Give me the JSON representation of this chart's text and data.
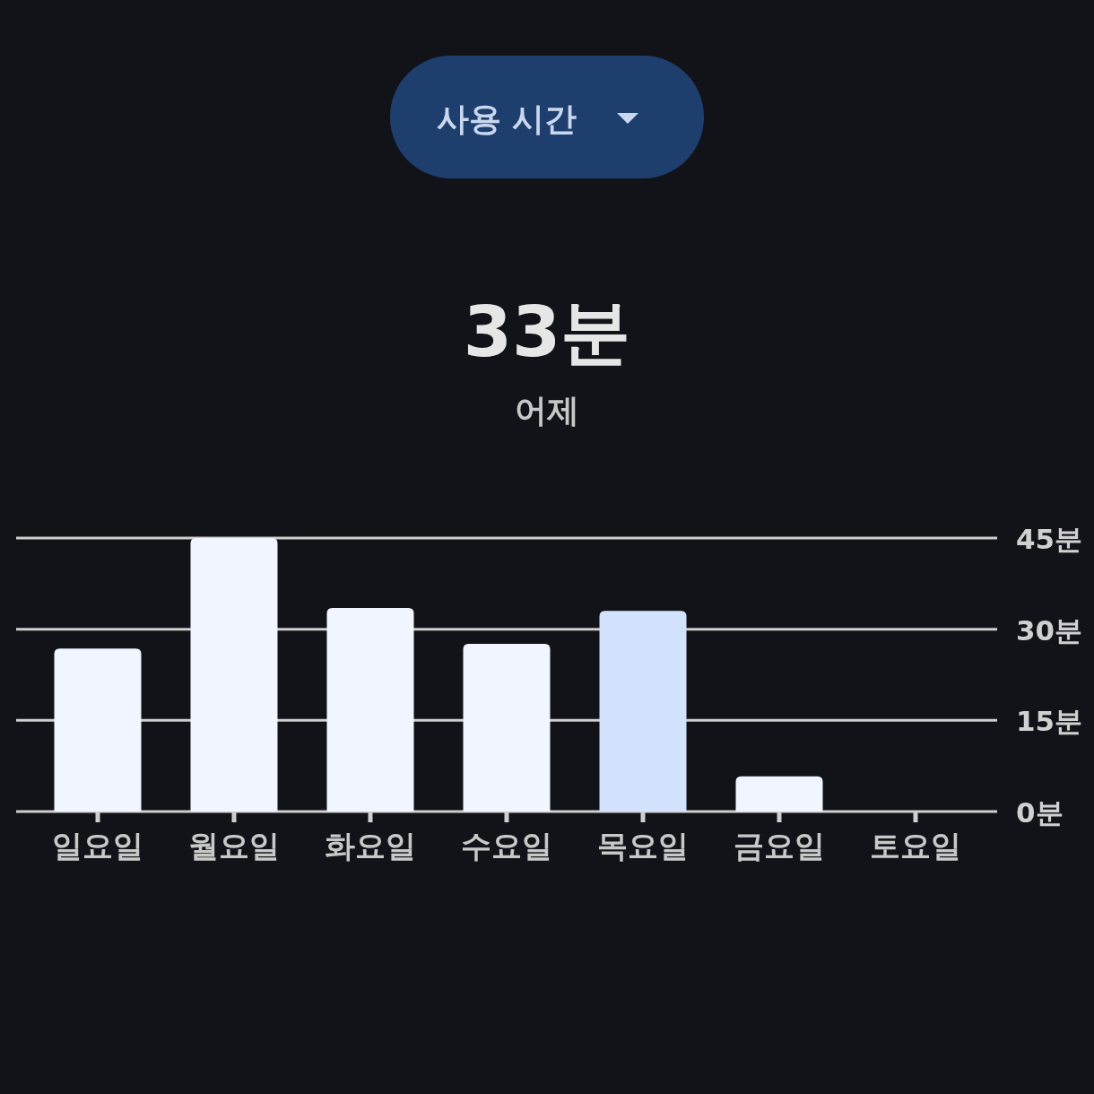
{
  "chart_data": {
    "type": "bar",
    "title": "33분",
    "subtitle": "어제",
    "categories": [
      "일요일",
      "월요일",
      "화요일",
      "수요일",
      "목요일",
      "금요일",
      "토요일"
    ],
    "values": [
      26.8,
      45,
      33.5,
      27.6,
      33,
      5.8,
      0
    ],
    "colors": [
      "#f0f5ff",
      "#f0f5ff",
      "#f0f5ff",
      "#f0f5ff",
      "#d3e3fd",
      "#f0f5ff",
      "#f0f5ff"
    ],
    "ylim": [
      0,
      45
    ],
    "yticks": [
      {
        "value": 0,
        "label": "0분"
      },
      {
        "value": 15,
        "label": "15분"
      },
      {
        "value": 30,
        "label": "30분"
      },
      {
        "value": 45,
        "label": "45분"
      }
    ],
    "grid": "y",
    "annotations": [
      "사용 시간"
    ]
  }
}
